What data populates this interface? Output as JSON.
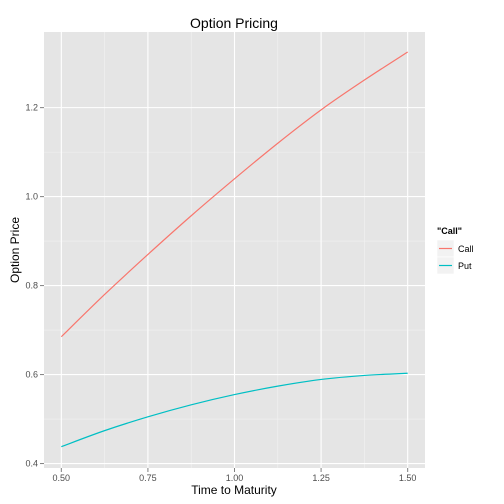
{
  "chart_data": {
    "type": "line",
    "title": "Option Pricing",
    "xlabel": "Time to Maturity",
    "ylabel": "Option Price",
    "xlim": [
      0.45,
      1.55
    ],
    "ylim": [
      0.39,
      1.37
    ],
    "x_ticks": [
      0.5,
      0.75,
      1.0,
      1.25,
      1.5
    ],
    "x_tick_labels": [
      "0.50",
      "0.75",
      "1.00",
      "1.25",
      "1.50"
    ],
    "y_ticks": [
      0.4,
      0.6,
      0.8,
      1.0,
      1.2
    ],
    "y_tick_labels": [
      "0.4",
      "0.6",
      "0.8",
      "1.0",
      "1.2"
    ],
    "grid": true,
    "legend": {
      "title": "\"Call\"",
      "placement": "right",
      "entries": [
        "Call",
        "Put"
      ]
    },
    "series": [
      {
        "name": "Call",
        "color": "#F8766D",
        "x": [
          0.5,
          0.625,
          0.75,
          0.875,
          1.0,
          1.125,
          1.25,
          1.375,
          1.5
        ],
        "y": [
          0.685,
          0.78,
          0.87,
          0.957,
          1.04,
          1.12,
          1.195,
          1.262,
          1.325
        ]
      },
      {
        "name": "Put",
        "color": "#00BFC4",
        "x": [
          0.5,
          0.625,
          0.75,
          0.875,
          1.0,
          1.125,
          1.25,
          1.375,
          1.5
        ],
        "y": [
          0.438,
          0.474,
          0.505,
          0.532,
          0.555,
          0.574,
          0.589,
          0.598,
          0.603
        ]
      }
    ]
  }
}
